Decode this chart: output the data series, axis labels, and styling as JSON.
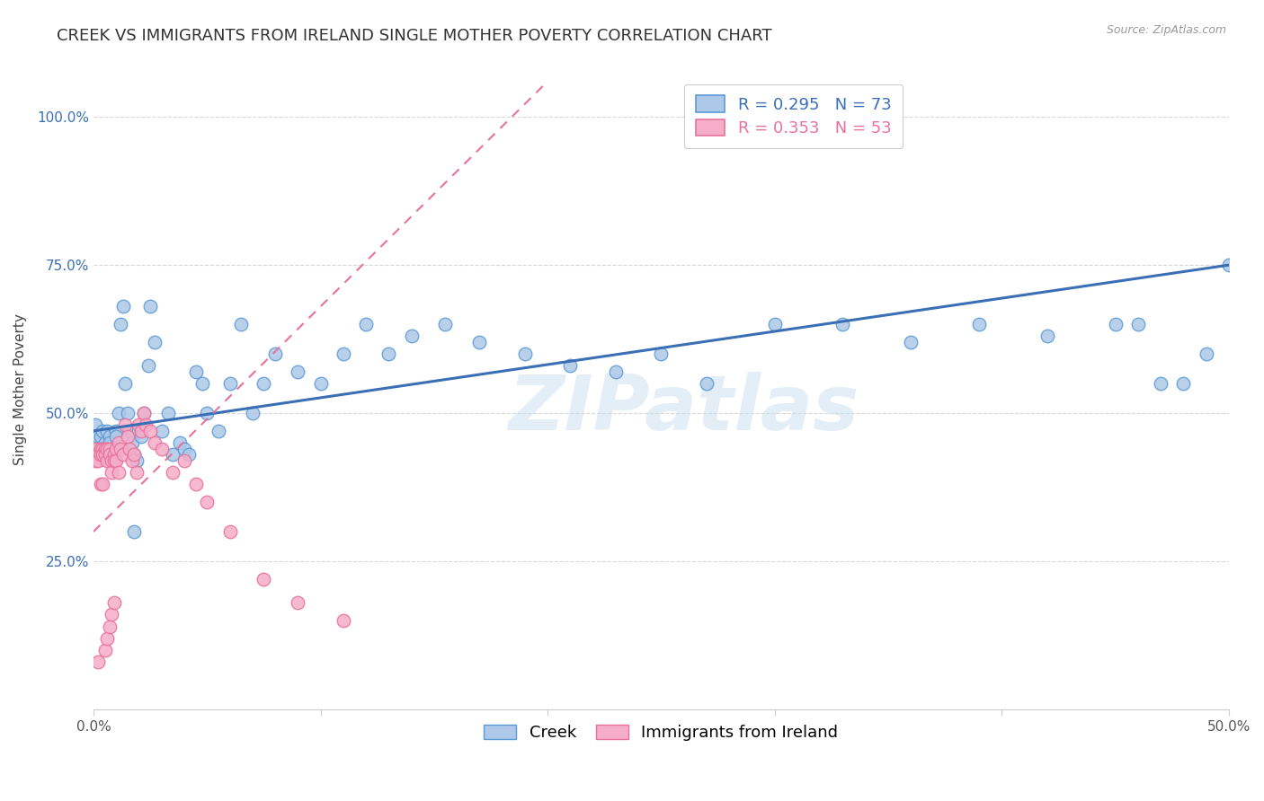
{
  "title": "CREEK VS IMMIGRANTS FROM IRELAND SINGLE MOTHER POVERTY CORRELATION CHART",
  "source": "Source: ZipAtlas.com",
  "ylabel": "Single Mother Poverty",
  "yticks_vals": [
    0.25,
    0.5,
    0.75,
    1.0
  ],
  "yticks_labels": [
    "25.0%",
    "50.0%",
    "75.0%",
    "100.0%"
  ],
  "xlim": [
    0.0,
    0.5
  ],
  "ylim": [
    0.0,
    1.08
  ],
  "creek_color": "#adc8e8",
  "ireland_color": "#f5adc8",
  "creek_edge_color": "#5b9bd5",
  "ireland_edge_color": "#e8729a",
  "creek_line_color": "#3a6fb5",
  "ireland_line_color": "#e8729a",
  "creek_R": 0.295,
  "creek_N": 73,
  "ireland_R": 0.353,
  "ireland_N": 53,
  "background_color": "#ffffff",
  "grid_color": "#d8d8d8",
  "creek_scatter_x": [
    0.001,
    0.002,
    0.002,
    0.003,
    0.003,
    0.004,
    0.004,
    0.005,
    0.005,
    0.006,
    0.006,
    0.007,
    0.007,
    0.008,
    0.008,
    0.009,
    0.01,
    0.01,
    0.011,
    0.012,
    0.013,
    0.014,
    0.015,
    0.016,
    0.017,
    0.018,
    0.019,
    0.02,
    0.021,
    0.022,
    0.024,
    0.025,
    0.027,
    0.03,
    0.033,
    0.035,
    0.038,
    0.04,
    0.042,
    0.045,
    0.048,
    0.05,
    0.055,
    0.06,
    0.065,
    0.07,
    0.075,
    0.08,
    0.09,
    0.1,
    0.11,
    0.12,
    0.13,
    0.14,
    0.155,
    0.17,
    0.19,
    0.21,
    0.23,
    0.25,
    0.27,
    0.3,
    0.33,
    0.36,
    0.39,
    0.42,
    0.45,
    0.46,
    0.47,
    0.48,
    0.49,
    0.5,
    0.018
  ],
  "creek_scatter_y": [
    0.48,
    0.46,
    0.44,
    0.43,
    0.46,
    0.44,
    0.47,
    0.45,
    0.44,
    0.43,
    0.47,
    0.46,
    0.45,
    0.44,
    0.43,
    0.44,
    0.47,
    0.46,
    0.5,
    0.65,
    0.68,
    0.55,
    0.5,
    0.47,
    0.45,
    0.43,
    0.42,
    0.47,
    0.46,
    0.5,
    0.58,
    0.68,
    0.62,
    0.47,
    0.5,
    0.43,
    0.45,
    0.44,
    0.43,
    0.57,
    0.55,
    0.5,
    0.47,
    0.55,
    0.65,
    0.5,
    0.55,
    0.6,
    0.57,
    0.55,
    0.6,
    0.65,
    0.6,
    0.63,
    0.65,
    0.62,
    0.6,
    0.58,
    0.57,
    0.6,
    0.55,
    0.65,
    0.65,
    0.62,
    0.65,
    0.63,
    0.65,
    0.65,
    0.55,
    0.55,
    0.6,
    0.75,
    0.3
  ],
  "ireland_scatter_x": [
    0.001,
    0.001,
    0.002,
    0.002,
    0.002,
    0.003,
    0.003,
    0.003,
    0.004,
    0.004,
    0.004,
    0.005,
    0.005,
    0.005,
    0.006,
    0.006,
    0.006,
    0.007,
    0.007,
    0.007,
    0.008,
    0.008,
    0.008,
    0.009,
    0.009,
    0.009,
    0.01,
    0.01,
    0.011,
    0.011,
    0.012,
    0.013,
    0.014,
    0.015,
    0.016,
    0.017,
    0.018,
    0.019,
    0.02,
    0.021,
    0.022,
    0.023,
    0.025,
    0.027,
    0.03,
    0.035,
    0.04,
    0.045,
    0.05,
    0.06,
    0.075,
    0.09,
    0.11
  ],
  "ireland_scatter_y": [
    0.44,
    0.42,
    0.43,
    0.42,
    0.08,
    0.44,
    0.43,
    0.38,
    0.44,
    0.43,
    0.38,
    0.44,
    0.43,
    0.1,
    0.44,
    0.42,
    0.12,
    0.44,
    0.43,
    0.14,
    0.42,
    0.4,
    0.16,
    0.43,
    0.42,
    0.18,
    0.44,
    0.42,
    0.45,
    0.4,
    0.44,
    0.43,
    0.48,
    0.46,
    0.44,
    0.42,
    0.43,
    0.4,
    0.48,
    0.47,
    0.5,
    0.48,
    0.47,
    0.45,
    0.44,
    0.4,
    0.42,
    0.38,
    0.35,
    0.3,
    0.22,
    0.18,
    0.15
  ],
  "watermark": "ZIPatlas",
  "title_fontsize": 13,
  "legend_fontsize": 13,
  "tick_fontsize": 11,
  "ylabel_fontsize": 11
}
